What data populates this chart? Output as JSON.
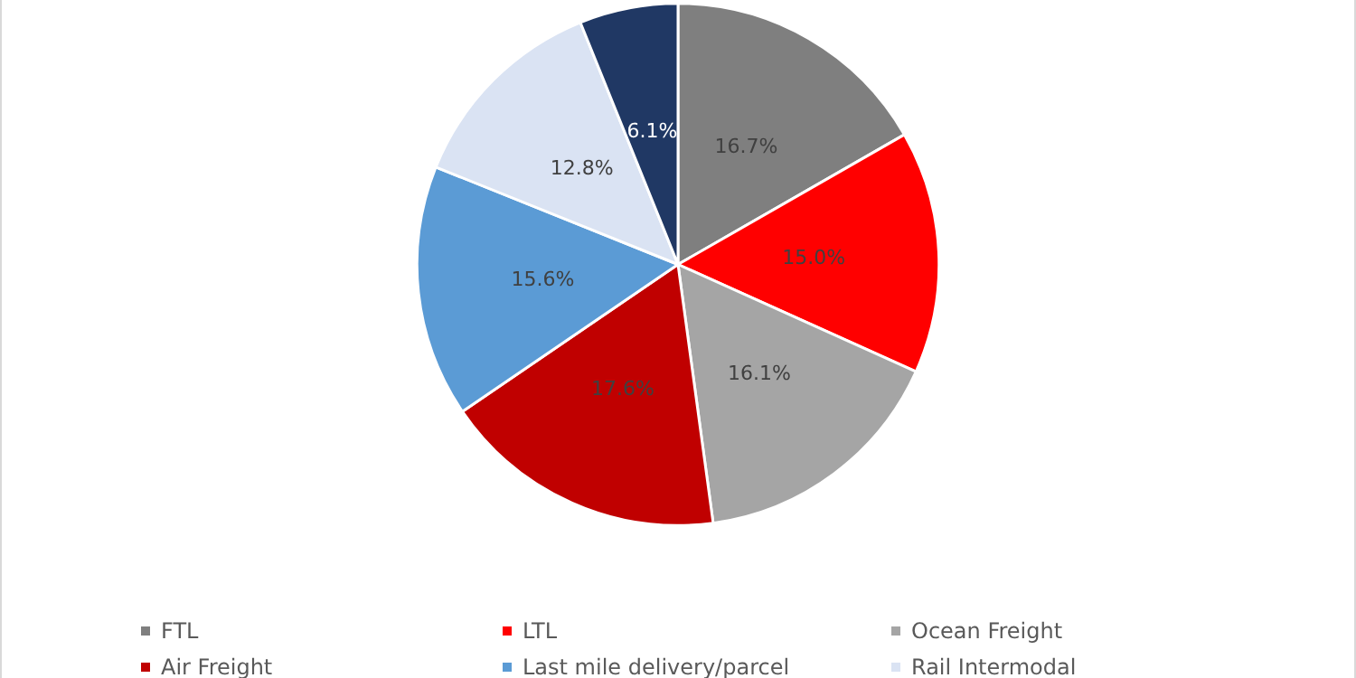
{
  "chart_data": {
    "type": "pie",
    "categories": [
      "FTL",
      "LTL",
      "Ocean Freight",
      "Air Freight",
      "Last mile delivery/parcel",
      "Rail Intermodal",
      null
    ],
    "values": [
      16.7,
      15.0,
      16.1,
      17.6,
      15.6,
      12.8,
      6.1
    ],
    "colors": [
      "#7f7f7f",
      "#ff0000",
      "#a5a5a5",
      "#c00000",
      "#5b9bd5",
      "#dae3f3",
      "#203864"
    ],
    "value_labels": [
      "16.7%",
      "15.0%",
      "16.1%",
      "17.6%",
      "15.6%",
      "12.8%",
      "6.1%"
    ],
    "legend": "bottom"
  }
}
